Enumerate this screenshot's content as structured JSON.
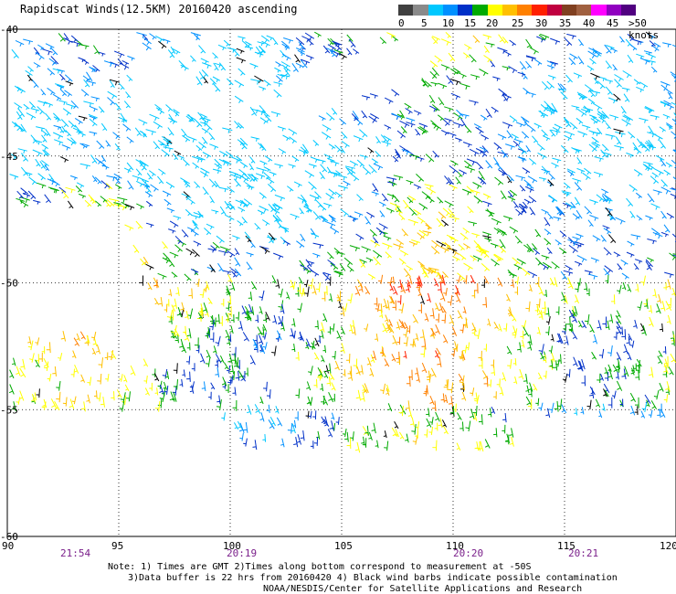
{
  "title": "Rapidscat Winds(12.5KM) 20160420 ascending",
  "legend": {
    "colors": [
      "#404040",
      "#8a8a8a",
      "#00c8ff",
      "#0090ff",
      "#0030c8",
      "#00aa00",
      "#ffff00",
      "#ffc000",
      "#ff8000",
      "#ff2000",
      "#c00040",
      "#804020",
      "#a06040",
      "#ff00ff",
      "#9000c0",
      "#500080"
    ],
    "labels": [
      "0",
      "5",
      "10",
      "15",
      "20",
      "25",
      "30",
      "35",
      "40",
      "45",
      ">50 knots"
    ]
  },
  "axes": {
    "x_ticks": [
      "90",
      "95",
      "100",
      "105",
      "110",
      "115",
      "120"
    ],
    "y_ticks": [
      "-40",
      "-45",
      "-50",
      "-55",
      "-60"
    ]
  },
  "times": [
    "21:54",
    "20:19",
    "20:20",
    "20:21"
  ],
  "notes": {
    "line1": "Note: 1) Times are GMT 2)Times along bottom correspond to measurement at -50S",
    "line2": "3)Data buffer is 22 hrs from 20160420 4) Black wind barbs indicate possible contamination",
    "line3": "NOAA/NESDIS/Center for Satellite Applications and Research"
  }
}
